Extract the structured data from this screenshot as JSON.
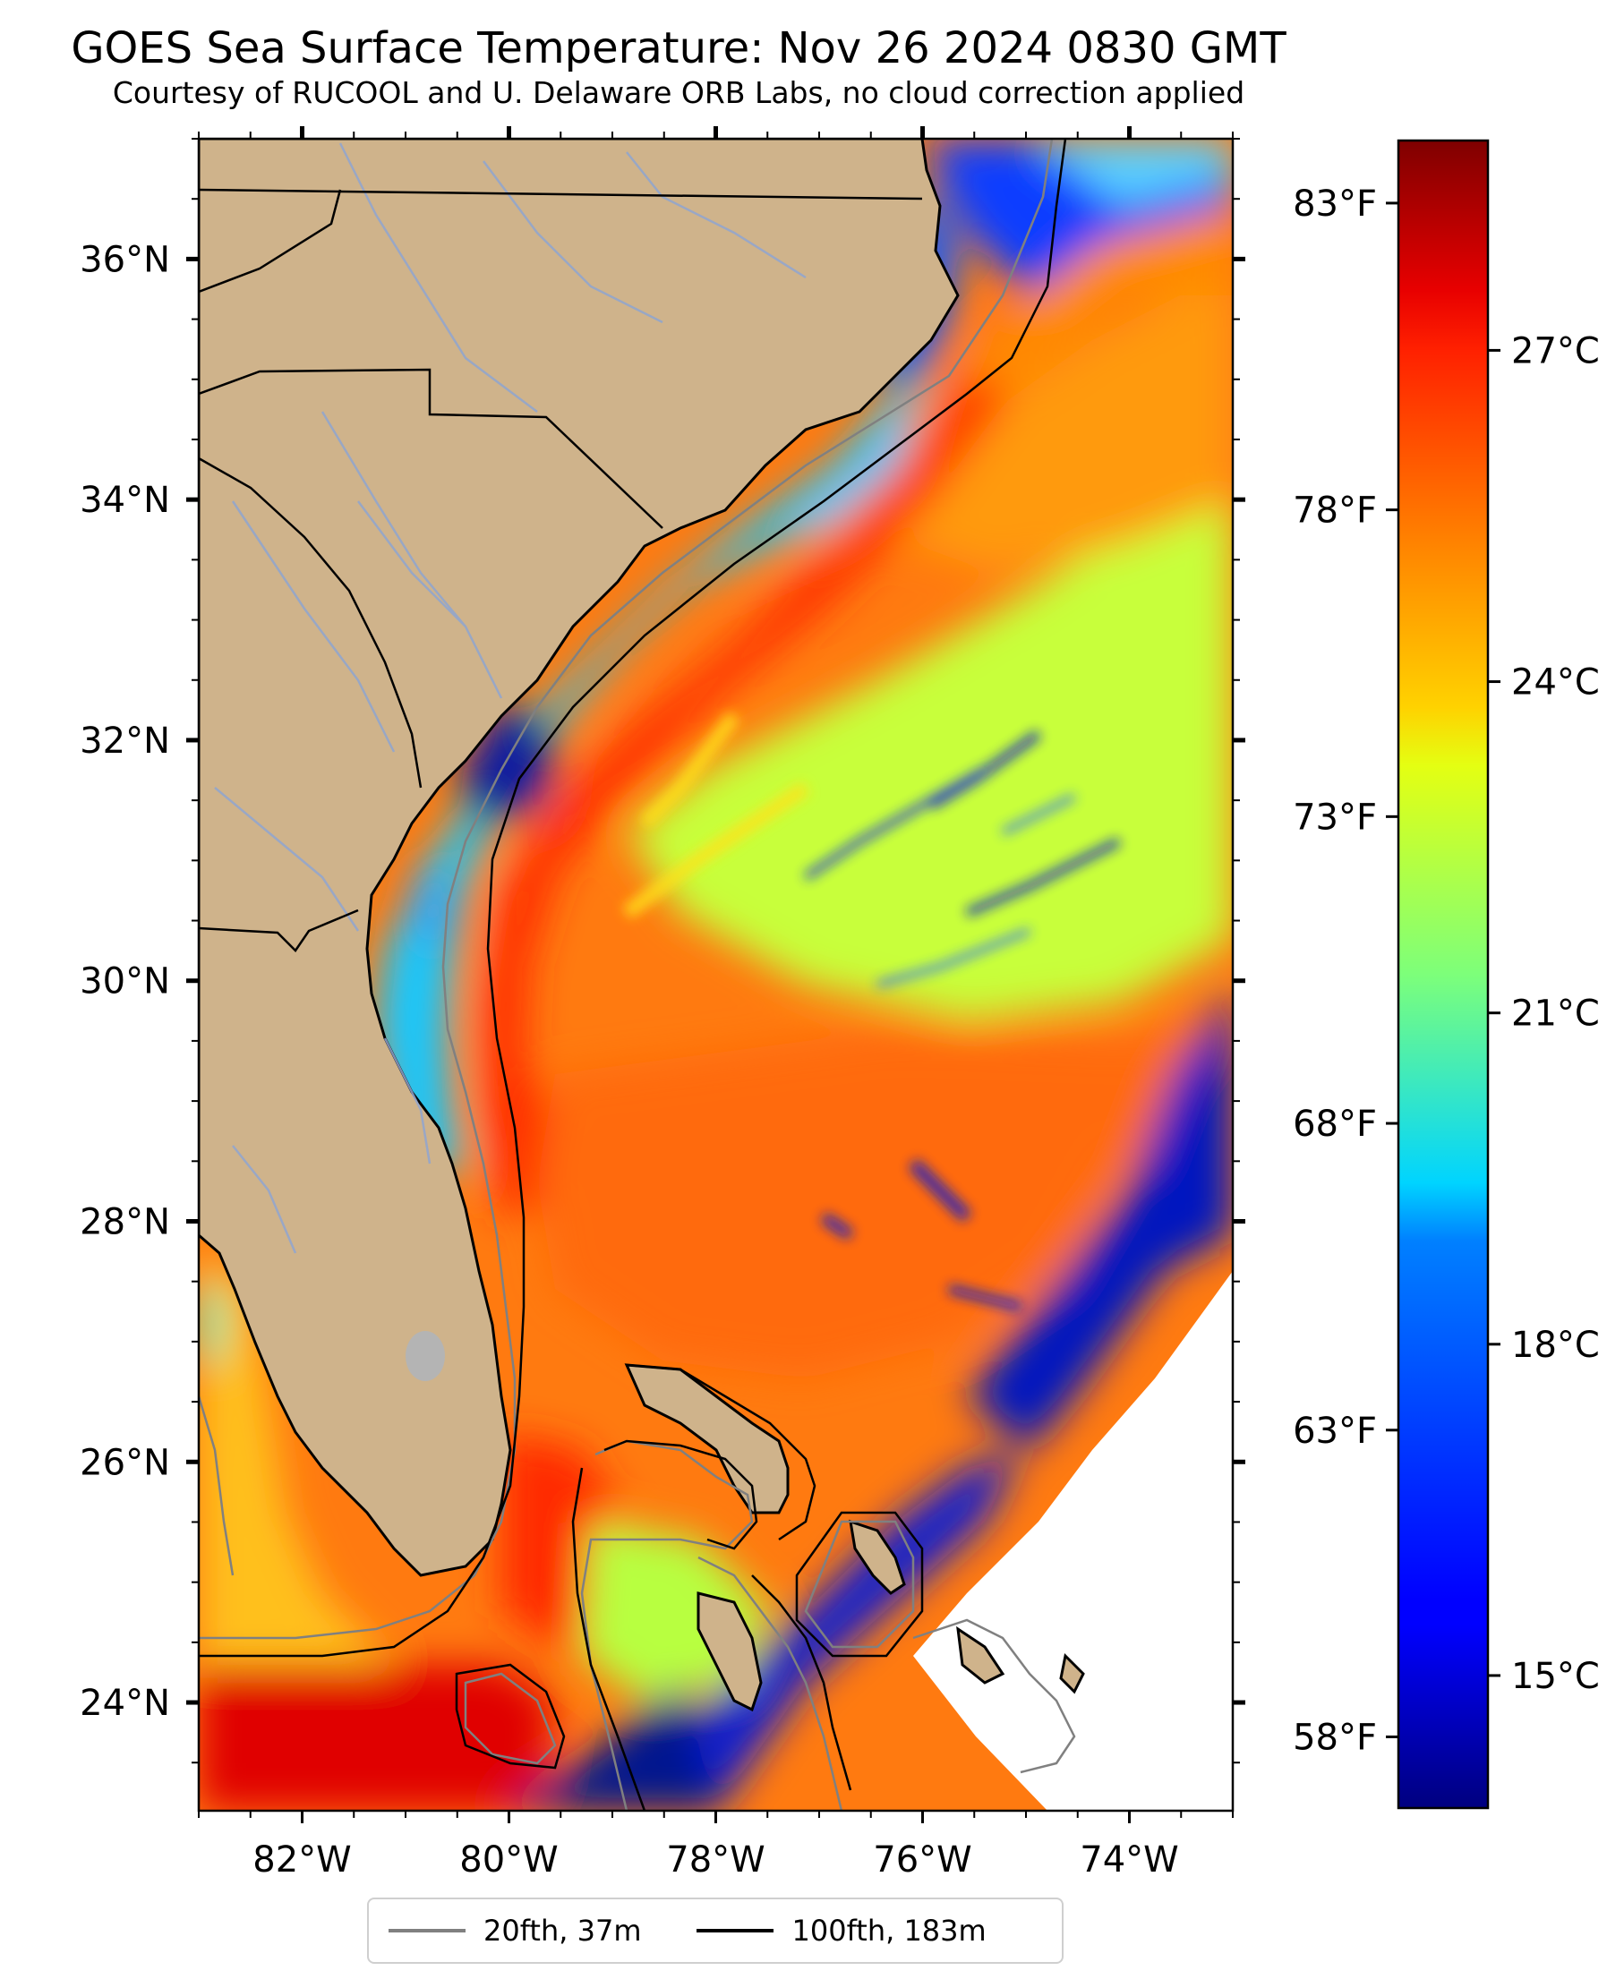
{
  "title": "GOES Sea Surface Temperature: Nov 26 2024 0830 GMT",
  "subtitle": "Courtesy of RUCOOL and U. Delaware ORB Labs, no cloud correction applied",
  "map": {
    "lon_range": [
      -83,
      -73
    ],
    "lat_range": [
      23.1,
      37
    ],
    "lon_ticks": [
      {
        "value": -82,
        "label": "82°W"
      },
      {
        "value": -80,
        "label": "80°W"
      },
      {
        "value": -78,
        "label": "78°W"
      },
      {
        "value": -76,
        "label": "76°W"
      },
      {
        "value": -74,
        "label": "74°W"
      }
    ],
    "lat_ticks": [
      {
        "value": 24,
        "label": "24°N"
      },
      {
        "value": 26,
        "label": "26°N"
      },
      {
        "value": 28,
        "label": "28°N"
      },
      {
        "value": 30,
        "label": "30°N"
      },
      {
        "value": 32,
        "label": "32°N"
      },
      {
        "value": 34,
        "label": "34°N"
      },
      {
        "value": 36,
        "label": "36°N"
      }
    ],
    "land_color": "#cfb38b",
    "missing_color": "#ffffff"
  },
  "temperature_scale": {
    "min_c": 13.8,
    "max_c": 28.9,
    "celsius_ticks": [
      {
        "value": 15,
        "label": "15°C"
      },
      {
        "value": 18,
        "label": "18°C"
      },
      {
        "value": 21,
        "label": "21°C"
      },
      {
        "value": 24,
        "label": "24°C"
      },
      {
        "value": 27,
        "label": "27°C"
      }
    ],
    "fahrenheit_ticks": [
      {
        "value": 58,
        "label": "58°F"
      },
      {
        "value": 63,
        "label": "63°F"
      },
      {
        "value": 68,
        "label": "68°F"
      },
      {
        "value": 73,
        "label": "73°F"
      },
      {
        "value": 78,
        "label": "78°F"
      },
      {
        "value": 83,
        "label": "83°F"
      }
    ],
    "colormap": "jet"
  },
  "legend": {
    "items": [
      {
        "label": "20fth, 37m",
        "color": "#808080"
      },
      {
        "label": "100fth, 183m",
        "color": "#000000"
      }
    ]
  }
}
